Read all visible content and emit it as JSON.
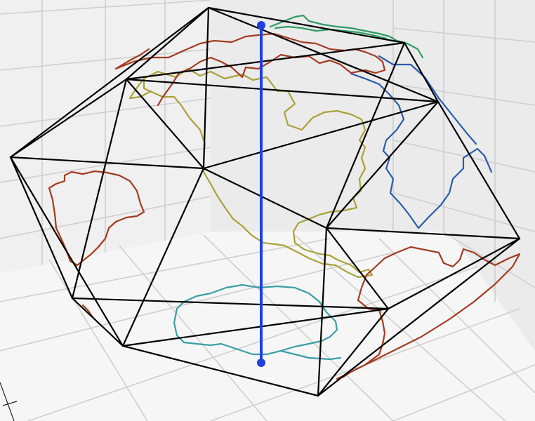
{
  "figure": {
    "background": "#ffffff",
    "pane_colors": {
      "left_wall": "#f0f0f0",
      "right_wall": "#eaeaea",
      "floor": "#f5f5f5"
    },
    "grid_color": "#cfcfcf",
    "grid": true
  },
  "polyhedron": {
    "shape": "icosahedron",
    "edge_color": "#000000",
    "vertex_count": 12,
    "edge_count": 30
  },
  "axis": {
    "color": "#1f3fe0",
    "marker": "dot"
  },
  "coastlines": [
    {
      "region": "north-america",
      "color": "#a9a238"
    },
    {
      "region": "south-america-east",
      "color": "#2a5caa"
    },
    {
      "region": "asia",
      "color": "#a43b1f"
    },
    {
      "region": "africa",
      "color": "#a43b1f"
    },
    {
      "region": "antarctica",
      "color": "#3a9fa4"
    },
    {
      "region": "greenland",
      "color": "#2f9c64"
    }
  ]
}
